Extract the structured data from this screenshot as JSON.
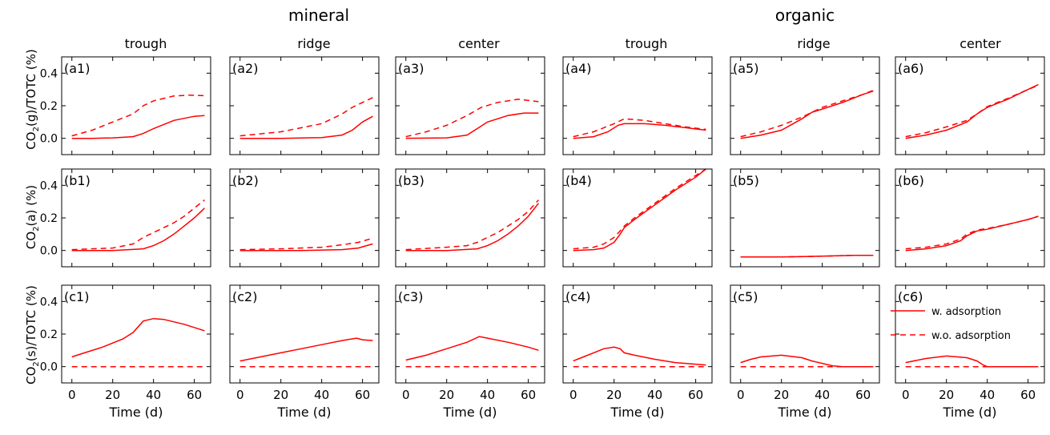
{
  "figure": {
    "group_titles": [
      "mineral",
      "organic"
    ],
    "column_titles": [
      "trough",
      "ridge",
      "center",
      "trough",
      "ridge",
      "center"
    ],
    "row_ylabels": [
      {
        "main": "CO",
        "sub": "2",
        "rest": "(g)/TOTC (%)"
      },
      {
        "main": "CO",
        "sub": "2",
        "rest": "(a) (%)"
      },
      {
        "main": "CO",
        "sub": "2",
        "rest": "(s)/TOTC (%)"
      }
    ],
    "xlabel": "Time (d)",
    "legend": {
      "items": [
        {
          "label": "w. adsorption",
          "style": "solid"
        },
        {
          "label": "w.o. adsorption",
          "style": "dashed"
        }
      ],
      "placement": "inside panel c6, upper right"
    },
    "line_color": "#ff0000"
  },
  "chart_data": {
    "type": "line",
    "layout": "3 rows x 6 columns",
    "xlim": [
      -5,
      68
    ],
    "ylim": [
      -0.1,
      0.5
    ],
    "xticks": [
      0,
      20,
      40,
      60
    ],
    "yticks": [
      0.0,
      0.2,
      0.4
    ],
    "xtick_labels": [
      "0",
      "20",
      "40",
      "60"
    ],
    "ytick_labels": [
      "0.0",
      "0.2",
      "0.4"
    ],
    "series_names": [
      "w. adsorption",
      "w.o. adsorption"
    ],
    "panels": [
      {
        "label": "(a1)",
        "row": 0,
        "col": 0,
        "solid": [
          [
            0,
            0.0
          ],
          [
            10,
            0.0
          ],
          [
            20,
            0.003
          ],
          [
            30,
            0.01
          ],
          [
            35,
            0.03
          ],
          [
            40,
            0.06
          ],
          [
            50,
            0.11
          ],
          [
            60,
            0.135
          ],
          [
            65,
            0.14
          ]
        ],
        "dashed": [
          [
            0,
            0.015
          ],
          [
            10,
            0.05
          ],
          [
            20,
            0.1
          ],
          [
            30,
            0.15
          ],
          [
            35,
            0.2
          ],
          [
            40,
            0.23
          ],
          [
            50,
            0.26
          ],
          [
            57,
            0.265
          ],
          [
            65,
            0.262
          ]
        ]
      },
      {
        "label": "(a2)",
        "row": 0,
        "col": 1,
        "solid": [
          [
            0,
            0.0
          ],
          [
            20,
            0.0
          ],
          [
            40,
            0.005
          ],
          [
            50,
            0.02
          ],
          [
            55,
            0.05
          ],
          [
            60,
            0.1
          ],
          [
            65,
            0.135
          ]
        ],
        "dashed": [
          [
            0,
            0.015
          ],
          [
            20,
            0.04
          ],
          [
            40,
            0.09
          ],
          [
            50,
            0.15
          ],
          [
            55,
            0.19
          ],
          [
            60,
            0.22
          ],
          [
            65,
            0.25
          ]
        ]
      },
      {
        "label": "(a3)",
        "row": 0,
        "col": 2,
        "solid": [
          [
            0,
            0.0
          ],
          [
            20,
            0.003
          ],
          [
            30,
            0.02
          ],
          [
            35,
            0.06
          ],
          [
            40,
            0.1
          ],
          [
            50,
            0.14
          ],
          [
            58,
            0.155
          ],
          [
            65,
            0.155
          ]
        ],
        "dashed": [
          [
            0,
            0.01
          ],
          [
            10,
            0.04
          ],
          [
            20,
            0.08
          ],
          [
            30,
            0.14
          ],
          [
            37,
            0.19
          ],
          [
            45,
            0.22
          ],
          [
            55,
            0.24
          ],
          [
            65,
            0.225
          ]
        ]
      },
      {
        "label": "(a4)",
        "row": 0,
        "col": 3,
        "solid": [
          [
            0,
            0.0
          ],
          [
            10,
            0.01
          ],
          [
            17,
            0.04
          ],
          [
            22,
            0.08
          ],
          [
            25,
            0.09
          ],
          [
            35,
            0.09
          ],
          [
            45,
            0.08
          ],
          [
            55,
            0.065
          ],
          [
            65,
            0.05
          ]
        ],
        "dashed": [
          [
            0,
            0.01
          ],
          [
            10,
            0.04
          ],
          [
            20,
            0.09
          ],
          [
            25,
            0.12
          ],
          [
            35,
            0.11
          ],
          [
            45,
            0.09
          ],
          [
            55,
            0.07
          ],
          [
            65,
            0.055
          ]
        ]
      },
      {
        "label": "(a5)",
        "row": 0,
        "col": 4,
        "solid": [
          [
            0,
            0.0
          ],
          [
            10,
            0.02
          ],
          [
            20,
            0.05
          ],
          [
            30,
            0.12
          ],
          [
            35,
            0.16
          ],
          [
            40,
            0.18
          ],
          [
            50,
            0.22
          ],
          [
            60,
            0.27
          ],
          [
            65,
            0.29
          ]
        ],
        "dashed": [
          [
            0,
            0.01
          ],
          [
            10,
            0.04
          ],
          [
            20,
            0.08
          ],
          [
            30,
            0.13
          ],
          [
            35,
            0.16
          ],
          [
            40,
            0.19
          ],
          [
            50,
            0.23
          ],
          [
            60,
            0.27
          ],
          [
            65,
            0.295
          ]
        ]
      },
      {
        "label": "(a6)",
        "row": 0,
        "col": 5,
        "solid": [
          [
            0,
            0.0
          ],
          [
            10,
            0.02
          ],
          [
            20,
            0.05
          ],
          [
            30,
            0.1
          ],
          [
            35,
            0.15
          ],
          [
            40,
            0.19
          ],
          [
            50,
            0.24
          ],
          [
            60,
            0.3
          ],
          [
            65,
            0.33
          ]
        ],
        "dashed": [
          [
            0,
            0.01
          ],
          [
            10,
            0.035
          ],
          [
            20,
            0.07
          ],
          [
            30,
            0.11
          ],
          [
            35,
            0.15
          ],
          [
            40,
            0.195
          ],
          [
            50,
            0.245
          ],
          [
            60,
            0.3
          ],
          [
            65,
            0.325
          ]
        ]
      },
      {
        "label": "(b1)",
        "row": 1,
        "col": 0,
        "solid": [
          [
            0,
            0.0
          ],
          [
            20,
            0.0
          ],
          [
            35,
            0.01
          ],
          [
            40,
            0.03
          ],
          [
            45,
            0.06
          ],
          [
            50,
            0.1
          ],
          [
            55,
            0.15
          ],
          [
            60,
            0.2
          ],
          [
            65,
            0.26
          ]
        ],
        "dashed": [
          [
            0,
            0.005
          ],
          [
            20,
            0.015
          ],
          [
            30,
            0.04
          ],
          [
            35,
            0.08
          ],
          [
            40,
            0.11
          ],
          [
            45,
            0.14
          ],
          [
            50,
            0.17
          ],
          [
            55,
            0.21
          ],
          [
            60,
            0.26
          ],
          [
            65,
            0.31
          ]
        ]
      },
      {
        "label": "(b2)",
        "row": 1,
        "col": 1,
        "solid": [
          [
            0,
            0.0
          ],
          [
            30,
            0.0
          ],
          [
            50,
            0.005
          ],
          [
            58,
            0.015
          ],
          [
            62,
            0.03
          ],
          [
            65,
            0.04
          ]
        ],
        "dashed": [
          [
            0,
            0.005
          ],
          [
            20,
            0.01
          ],
          [
            40,
            0.02
          ],
          [
            50,
            0.035
          ],
          [
            58,
            0.05
          ],
          [
            65,
            0.075
          ]
        ]
      },
      {
        "label": "(b3)",
        "row": 1,
        "col": 2,
        "solid": [
          [
            0,
            0.0
          ],
          [
            20,
            0.0
          ],
          [
            35,
            0.01
          ],
          [
            40,
            0.03
          ],
          [
            45,
            0.06
          ],
          [
            50,
            0.1
          ],
          [
            55,
            0.15
          ],
          [
            60,
            0.21
          ],
          [
            65,
            0.29
          ]
        ],
        "dashed": [
          [
            0,
            0.005
          ],
          [
            20,
            0.02
          ],
          [
            30,
            0.03
          ],
          [
            35,
            0.05
          ],
          [
            40,
            0.08
          ],
          [
            45,
            0.11
          ],
          [
            50,
            0.15
          ],
          [
            55,
            0.19
          ],
          [
            60,
            0.24
          ],
          [
            65,
            0.31
          ]
        ]
      },
      {
        "label": "(b4)",
        "row": 1,
        "col": 3,
        "solid": [
          [
            0,
            0.0
          ],
          [
            10,
            0.005
          ],
          [
            15,
            0.015
          ],
          [
            20,
            0.05
          ],
          [
            23,
            0.1
          ],
          [
            25,
            0.14
          ],
          [
            30,
            0.19
          ],
          [
            40,
            0.28
          ],
          [
            50,
            0.37
          ],
          [
            60,
            0.45
          ],
          [
            65,
            0.5
          ]
        ],
        "dashed": [
          [
            0,
            0.01
          ],
          [
            10,
            0.02
          ],
          [
            15,
            0.04
          ],
          [
            20,
            0.08
          ],
          [
            23,
            0.12
          ],
          [
            25,
            0.15
          ],
          [
            30,
            0.2
          ],
          [
            40,
            0.29
          ],
          [
            50,
            0.38
          ],
          [
            60,
            0.46
          ],
          [
            65,
            0.5
          ]
        ]
      },
      {
        "label": "(b5)",
        "row": 1,
        "col": 4,
        "solid": [
          [
            0,
            -0.04
          ],
          [
            20,
            -0.04
          ],
          [
            40,
            -0.035
          ],
          [
            55,
            -0.03
          ],
          [
            65,
            -0.03
          ]
        ],
        "dashed": [
          [
            0,
            -0.04
          ],
          [
            20,
            -0.04
          ],
          [
            40,
            -0.035
          ],
          [
            55,
            -0.03
          ],
          [
            65,
            -0.03
          ]
        ]
      },
      {
        "label": "(b6)",
        "row": 1,
        "col": 5,
        "solid": [
          [
            0,
            0.0
          ],
          [
            10,
            0.01
          ],
          [
            20,
            0.03
          ],
          [
            27,
            0.06
          ],
          [
            30,
            0.09
          ],
          [
            35,
            0.12
          ],
          [
            40,
            0.13
          ],
          [
            50,
            0.16
          ],
          [
            60,
            0.19
          ],
          [
            65,
            0.21
          ]
        ],
        "dashed": [
          [
            0,
            0.01
          ],
          [
            10,
            0.02
          ],
          [
            20,
            0.04
          ],
          [
            27,
            0.07
          ],
          [
            30,
            0.1
          ],
          [
            35,
            0.125
          ],
          [
            40,
            0.135
          ],
          [
            50,
            0.16
          ],
          [
            60,
            0.19
          ],
          [
            65,
            0.21
          ]
        ]
      },
      {
        "label": "(c1)",
        "row": 2,
        "col": 0,
        "solid": [
          [
            0,
            0.06
          ],
          [
            5,
            0.08
          ],
          [
            15,
            0.12
          ],
          [
            25,
            0.17
          ],
          [
            30,
            0.21
          ],
          [
            35,
            0.28
          ],
          [
            40,
            0.295
          ],
          [
            45,
            0.29
          ],
          [
            55,
            0.26
          ],
          [
            65,
            0.22
          ]
        ],
        "dashed": [
          [
            0,
            0.0
          ],
          [
            65,
            0.0
          ]
        ]
      },
      {
        "label": "(c2)",
        "row": 2,
        "col": 1,
        "solid": [
          [
            0,
            0.035
          ],
          [
            10,
            0.06
          ],
          [
            20,
            0.085
          ],
          [
            30,
            0.11
          ],
          [
            40,
            0.135
          ],
          [
            50,
            0.16
          ],
          [
            57,
            0.175
          ],
          [
            60,
            0.165
          ],
          [
            65,
            0.16
          ]
        ],
        "dashed": [
          [
            0,
            0.0
          ],
          [
            65,
            0.0
          ]
        ]
      },
      {
        "label": "(c3)",
        "row": 2,
        "col": 2,
        "solid": [
          [
            0,
            0.04
          ],
          [
            10,
            0.07
          ],
          [
            20,
            0.11
          ],
          [
            30,
            0.15
          ],
          [
            36,
            0.185
          ],
          [
            40,
            0.175
          ],
          [
            50,
            0.15
          ],
          [
            60,
            0.12
          ],
          [
            65,
            0.1
          ]
        ],
        "dashed": [
          [
            0,
            0.0
          ],
          [
            65,
            0.0
          ]
        ]
      },
      {
        "label": "(c4)",
        "row": 2,
        "col": 3,
        "solid": [
          [
            0,
            0.035
          ],
          [
            5,
            0.06
          ],
          [
            10,
            0.085
          ],
          [
            15,
            0.11
          ],
          [
            20,
            0.12
          ],
          [
            23,
            0.11
          ],
          [
            25,
            0.085
          ],
          [
            30,
            0.07
          ],
          [
            40,
            0.045
          ],
          [
            50,
            0.025
          ],
          [
            60,
            0.015
          ],
          [
            65,
            0.01
          ]
        ],
        "dashed": [
          [
            0,
            0.0
          ],
          [
            65,
            0.0
          ]
        ]
      },
      {
        "label": "(c5)",
        "row": 2,
        "col": 4,
        "solid": [
          [
            0,
            0.025
          ],
          [
            5,
            0.045
          ],
          [
            10,
            0.06
          ],
          [
            20,
            0.07
          ],
          [
            30,
            0.055
          ],
          [
            35,
            0.035
          ],
          [
            40,
            0.02
          ],
          [
            45,
            0.005
          ],
          [
            50,
            0.0
          ],
          [
            65,
            0.0
          ]
        ],
        "dashed": [
          [
            0,
            0.0
          ],
          [
            65,
            0.0
          ]
        ]
      },
      {
        "label": "(c6)",
        "row": 2,
        "col": 5,
        "solid": [
          [
            0,
            0.025
          ],
          [
            10,
            0.05
          ],
          [
            20,
            0.065
          ],
          [
            30,
            0.055
          ],
          [
            35,
            0.035
          ],
          [
            38,
            0.01
          ],
          [
            40,
            0.0
          ],
          [
            65,
            0.0
          ]
        ],
        "dashed": [
          [
            0,
            0.0
          ],
          [
            65,
            0.0
          ]
        ]
      }
    ]
  }
}
